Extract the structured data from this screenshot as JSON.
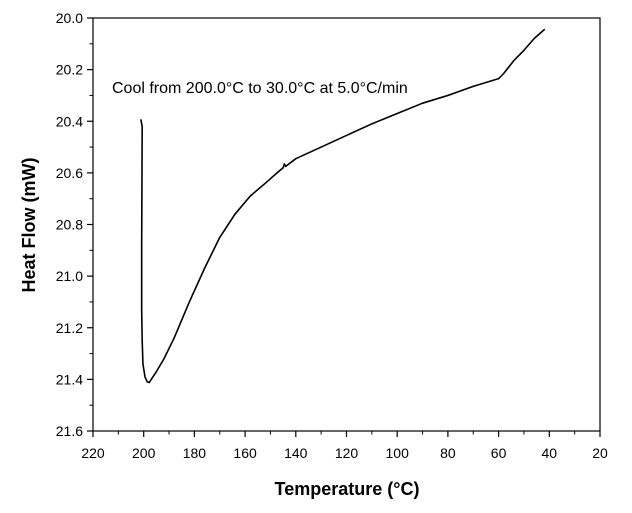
{
  "chart_data": {
    "type": "line",
    "annotation": "Cool from 200.0°C to 30.0°C at 5.0°C/min",
    "xlabel": "Temperature (°C)",
    "ylabel": "Heat Flow (mW)",
    "xlim": [
      220,
      20
    ],
    "ylim": [
      20.0,
      21.6
    ],
    "y_inverted": true,
    "grid": false,
    "xticks": [
      "220",
      "200",
      "180",
      "160",
      "140",
      "120",
      "100",
      "80",
      "60",
      "40",
      "20"
    ],
    "yticks": [
      "20.0",
      "20.2",
      "20.4",
      "20.6",
      "20.8",
      "21.0",
      "21.2",
      "21.4",
      "21.6"
    ],
    "series": [
      {
        "x": [
          201.1,
          200.6,
          200.8,
          200.8,
          200.6,
          200.3,
          199.5,
          198.6,
          197.8,
          197.0,
          195.0,
          192.0,
          188.0,
          182.0,
          176.0,
          170.0,
          164.0,
          158.0,
          152.0,
          148.0,
          145.0,
          144.5,
          144.0,
          140.0,
          130.0,
          120.0,
          110.0,
          100.0,
          90.0,
          80.0,
          70.0,
          60.0,
          58.0,
          54.0,
          50.0,
          46.0,
          42.0
        ],
        "y": [
          20.395,
          20.42,
          20.88,
          21.13,
          21.25,
          21.34,
          21.39,
          21.41,
          21.412,
          21.4,
          21.37,
          21.32,
          21.24,
          21.1,
          20.97,
          20.85,
          20.76,
          20.69,
          20.64,
          20.605,
          20.58,
          20.565,
          20.575,
          20.545,
          20.5,
          20.455,
          20.41,
          20.37,
          20.33,
          20.3,
          20.265,
          20.235,
          20.215,
          20.165,
          20.125,
          20.08,
          20.045
        ],
        "color": "#000000"
      }
    ]
  }
}
